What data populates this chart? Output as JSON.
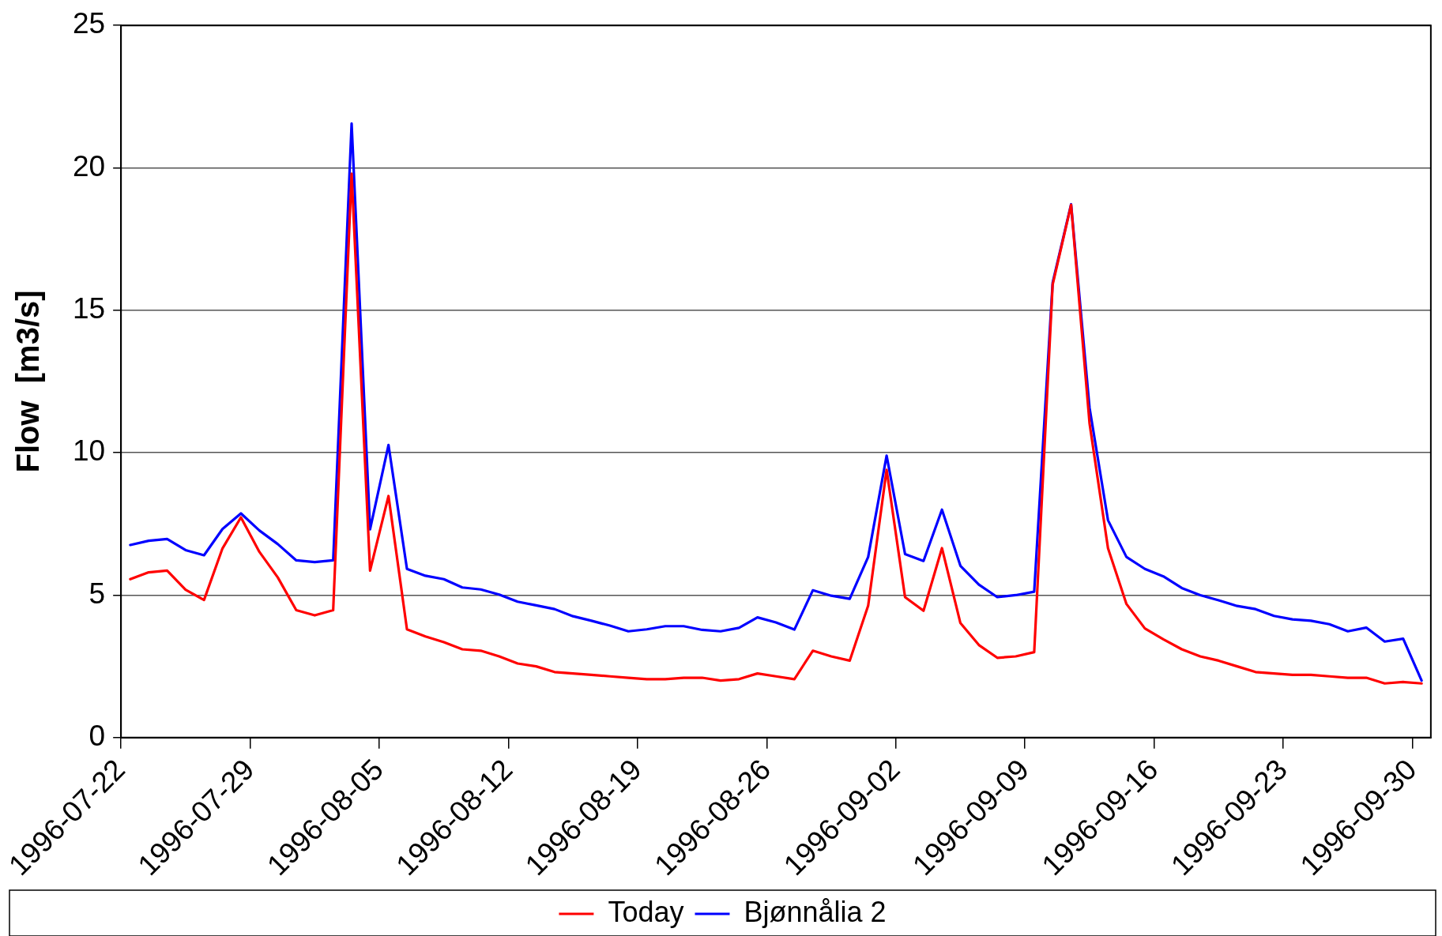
{
  "chart_data": {
    "type": "line",
    "ylabel": "Flow  [m3/s]",
    "x": [
      "1996-07-22T12:00",
      "1996-07-23T12:00",
      "1996-07-24T12:00",
      "1996-07-25T12:00",
      "1996-07-26T12:00",
      "1996-07-27T12:00",
      "1996-07-28T12:00",
      "1996-07-29T12:00",
      "1996-07-30T12:00",
      "1996-07-31T12:00",
      "1996-08-01T12:00",
      "1996-08-02T12:00",
      "1996-08-03T12:00",
      "1996-08-04T12:00",
      "1996-08-05T12:00",
      "1996-08-06T12:00",
      "1996-08-07T12:00",
      "1996-08-08T12:00",
      "1996-08-09T12:00",
      "1996-08-10T12:00",
      "1996-08-11T12:00",
      "1996-08-12T12:00",
      "1996-08-13T12:00",
      "1996-08-14T12:00",
      "1996-08-15T12:00",
      "1996-08-16T12:00",
      "1996-08-17T12:00",
      "1996-08-18T12:00",
      "1996-08-19T12:00",
      "1996-08-20T12:00",
      "1996-08-21T12:00",
      "1996-08-22T12:00",
      "1996-08-23T12:00",
      "1996-08-24T12:00",
      "1996-08-25T12:00",
      "1996-08-26T12:00",
      "1996-08-27T12:00",
      "1996-08-28T12:00",
      "1996-08-29T12:00",
      "1996-08-30T12:00",
      "1996-08-31T12:00",
      "1996-09-01T12:00",
      "1996-09-02T12:00",
      "1996-09-03T12:00",
      "1996-09-04T12:00",
      "1996-09-05T12:00",
      "1996-09-06T12:00",
      "1996-09-07T12:00",
      "1996-09-08T12:00",
      "1996-09-09T12:00",
      "1996-09-10T12:00",
      "1996-09-11T12:00",
      "1996-09-12T12:00",
      "1996-09-13T12:00",
      "1996-09-14T12:00",
      "1996-09-15T12:00",
      "1996-09-16T12:00",
      "1996-09-17T12:00",
      "1996-09-18T12:00",
      "1996-09-19T12:00",
      "1996-09-20T12:00",
      "1996-09-21T12:00",
      "1996-09-22T12:00",
      "1996-09-23T12:00",
      "1996-09-24T12:00",
      "1996-09-25T12:00",
      "1996-09-26T12:00",
      "1996-09-27T12:00",
      "1996-09-28T12:00",
      "1996-09-29T12:00",
      "1996-09-30T12:00"
    ],
    "series": [
      {
        "name": "Today",
        "color": "#ff0000",
        "values": [
          5.56,
          5.8,
          5.86,
          5.19,
          4.83,
          6.64,
          7.73,
          6.52,
          5.62,
          4.47,
          4.29,
          4.47,
          19.8,
          5.86,
          8.48,
          3.8,
          3.55,
          3.35,
          3.1,
          3.05,
          2.85,
          2.6,
          2.5,
          2.3,
          2.25,
          2.2,
          2.15,
          2.1,
          2.05,
          2.05,
          2.1,
          2.1,
          2.0,
          2.05,
          2.25,
          2.15,
          2.05,
          3.05,
          2.85,
          2.7,
          4.63,
          9.4,
          4.93,
          4.45,
          6.65,
          4.02,
          3.25,
          2.8,
          2.85,
          3.0,
          15.9,
          18.7,
          11.03,
          6.65,
          4.69,
          3.83,
          3.45,
          3.1,
          2.85,
          2.7,
          2.5,
          2.3,
          2.25,
          2.2,
          2.2,
          2.15,
          2.1,
          2.1,
          1.9,
          1.95,
          1.9
        ]
      },
      {
        "name": "Bjønnålia 2",
        "color": "#0000ff",
        "values": [
          6.76,
          6.91,
          6.97,
          6.58,
          6.4,
          7.32,
          7.87,
          7.27,
          6.79,
          6.22,
          6.16,
          6.22,
          21.56,
          7.31,
          10.27,
          5.92,
          5.68,
          5.56,
          5.27,
          5.2,
          5.02,
          4.77,
          4.64,
          4.51,
          4.26,
          4.1,
          3.93,
          3.73,
          3.8,
          3.91,
          3.91,
          3.78,
          3.73,
          3.85,
          4.22,
          4.04,
          3.79,
          5.17,
          4.98,
          4.87,
          6.34,
          9.9,
          6.44,
          6.2,
          8.0,
          6.03,
          5.37,
          4.93,
          5.0,
          5.12,
          15.97,
          18.72,
          11.58,
          7.63,
          6.34,
          5.92,
          5.66,
          5.25,
          5.0,
          4.82,
          4.62,
          4.51,
          4.27,
          4.15,
          4.1,
          3.98,
          3.73,
          3.86,
          3.37,
          3.47,
          2.0
        ]
      }
    ],
    "xlim": [
      "1996-07-22",
      "1996-10-01"
    ],
    "xticks": [
      "1996-07-22",
      "1996-07-29",
      "1996-08-05",
      "1996-08-12",
      "1996-08-19",
      "1996-08-26",
      "1996-09-02",
      "1996-09-09",
      "1996-09-16",
      "1996-09-23",
      "1996-09-30"
    ],
    "ylim": [
      0,
      25
    ],
    "yticks": [
      0,
      5,
      10,
      15,
      20,
      25
    ],
    "grid": "y",
    "legend": "bottom",
    "marker": "none",
    "line_style": "solid"
  }
}
